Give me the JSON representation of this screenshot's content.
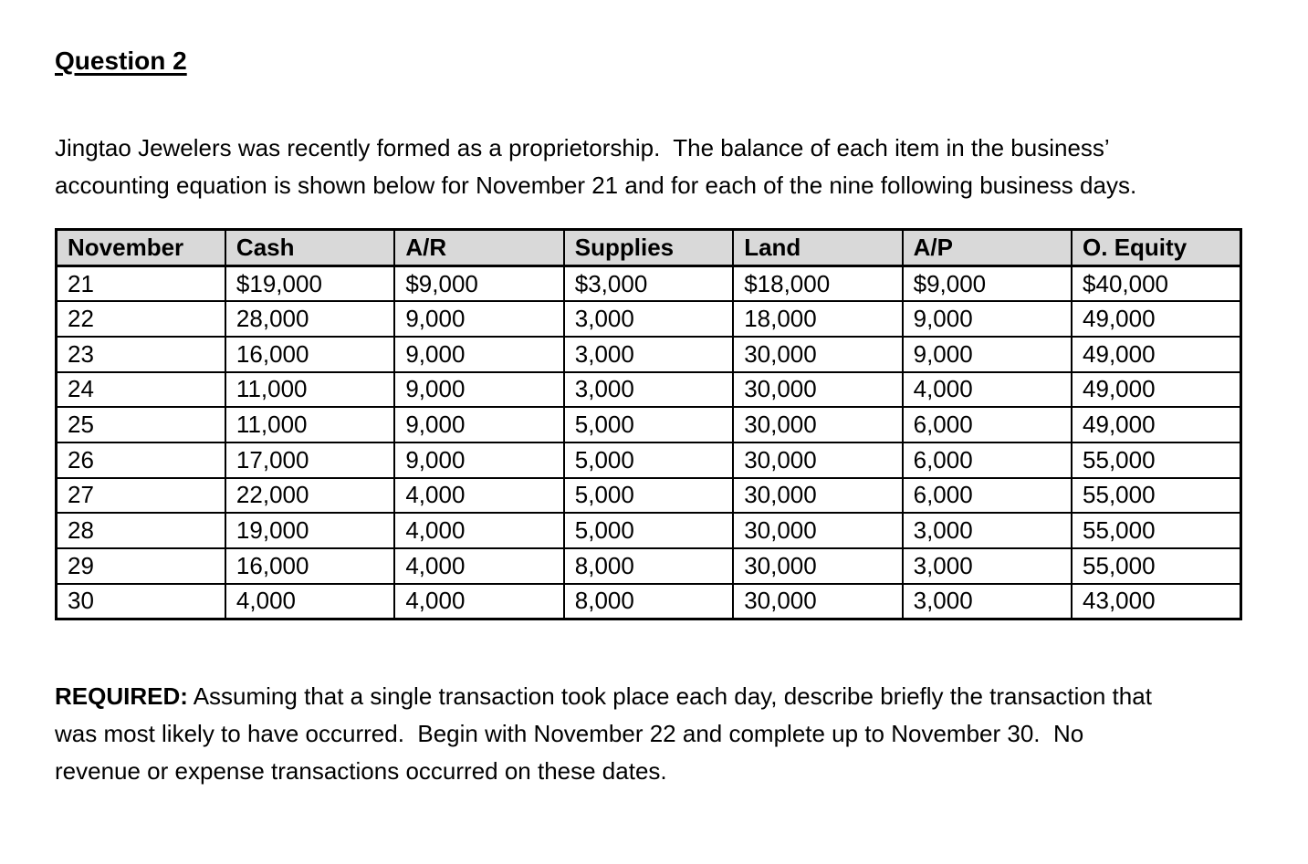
{
  "document": {
    "title": "Question 2",
    "intro_lines": [
      "Jingtao Jewelers was recently formed as a proprietorship.  The balance of each item in the business’",
      "accounting equation is shown below for November 21 and for each of the nine following business days."
    ],
    "required": {
      "label": "REQUIRED:",
      "line1_rest": " Assuming that a single transaction took place each day, describe briefly the transaction that",
      "line2": "was most likely to have occurred.  Begin with November 22 and complete up to November 30.  No",
      "line3": "revenue or expense transactions occurred on these dates."
    }
  },
  "table": {
    "header_bg": "#d9d9d9",
    "border_color": "#000000",
    "headers": [
      "November",
      "Cash",
      "A/R",
      "Supplies",
      "Land",
      "A/P",
      "O. Equity"
    ],
    "rows": [
      [
        "21",
        "$19,000",
        "$9,000",
        "$3,000",
        "$18,000",
        "$9,000",
        "$40,000"
      ],
      [
        "22",
        "28,000",
        "9,000",
        "3,000",
        "18,000",
        "9,000",
        "49,000"
      ],
      [
        "23",
        "16,000",
        "9,000",
        "3,000",
        "30,000",
        "9,000",
        "49,000"
      ],
      [
        "24",
        "11,000",
        "9,000",
        "3,000",
        "30,000",
        "4,000",
        "49,000"
      ],
      [
        "25",
        "11,000",
        "9,000",
        "5,000",
        "30,000",
        "6,000",
        "49,000"
      ],
      [
        "26",
        "17,000",
        "9,000",
        "5,000",
        "30,000",
        "6,000",
        "55,000"
      ],
      [
        "27",
        "22,000",
        "4,000",
        "5,000",
        "30,000",
        "6,000",
        "55,000"
      ],
      [
        "28",
        "19,000",
        "4,000",
        "5,000",
        "30,000",
        "3,000",
        "55,000"
      ],
      [
        "29",
        "16,000",
        "4,000",
        "8,000",
        "30,000",
        "3,000",
        "55,000"
      ],
      [
        "30",
        "4,000",
        "4,000",
        "8,000",
        "30,000",
        "3,000",
        "43,000"
      ]
    ]
  }
}
